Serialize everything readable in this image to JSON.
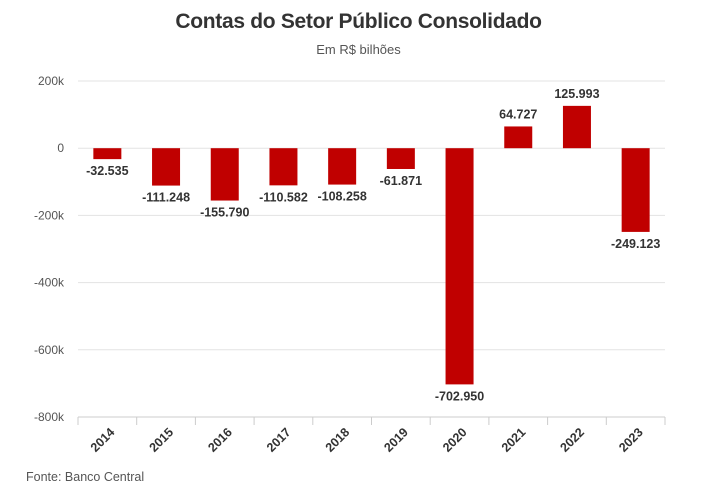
{
  "chart_data": {
    "type": "bar",
    "title": "Contas do Setor Público Consolidado",
    "subtitle": "Em R$ bilhões",
    "source": "Fonte: Banco Central",
    "categories": [
      "2014",
      "2015",
      "2016",
      "2017",
      "2018",
      "2019",
      "2020",
      "2021",
      "2022",
      "2023"
    ],
    "values": [
      -32535,
      -111248,
      -155790,
      -110582,
      -108258,
      -61871,
      -702950,
      64727,
      125993,
      -249123
    ],
    "value_labels": [
      "-32.535",
      "-111.248",
      "-155.790",
      "-110.582",
      "-108.258",
      "-61.871",
      "-702.950",
      "64.727",
      "125.993",
      "-249.123"
    ],
    "y_ticks": [
      200000,
      0,
      -200000,
      -400000,
      -600000,
      -800000
    ],
    "y_tick_labels": [
      "200k",
      "0",
      "-200k",
      "-400k",
      "-600k",
      "-800k"
    ],
    "ylim": [
      -800000,
      200000
    ],
    "xlabel": "",
    "ylabel": "",
    "grid": true,
    "bar_color": "#c00000"
  }
}
